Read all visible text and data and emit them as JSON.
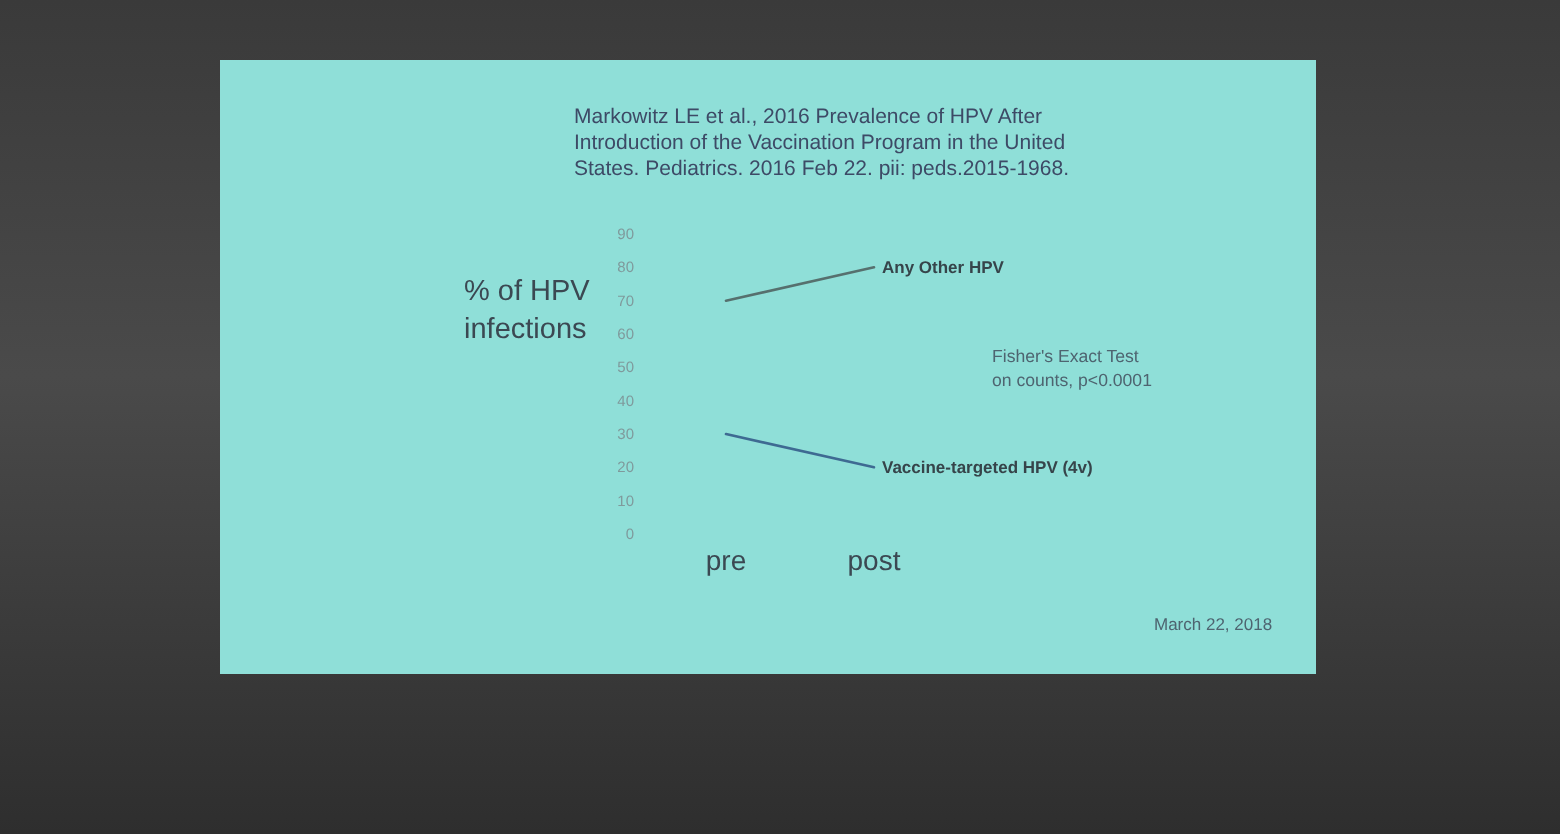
{
  "chart_data": {
    "type": "line",
    "title": "Markowitz LE et al., 2016 Prevalence of HPV After Introduction of the Vaccination Program in the United States. Pediatrics. 2016 Feb 22. pii: peds.2015-1968.",
    "ylabel": "% of HPV infections",
    "categories": [
      "pre",
      "post"
    ],
    "series": [
      {
        "name": "Any Other HPV",
        "color": "#56706e",
        "values": [
          70,
          80
        ]
      },
      {
        "name": "Vaccine-targeted HPV (4v)",
        "color": "#3e6a92",
        "values": [
          30,
          20
        ]
      }
    ],
    "ylim": [
      0,
      90
    ],
    "yticks": [
      0,
      10,
      20,
      30,
      40,
      50,
      60,
      70,
      80,
      90
    ],
    "marker": "none",
    "line_style": "solid",
    "annotations": [
      "Fisher's Exact Test on counts, p<0.0001",
      "March 22, 2018"
    ]
  }
}
